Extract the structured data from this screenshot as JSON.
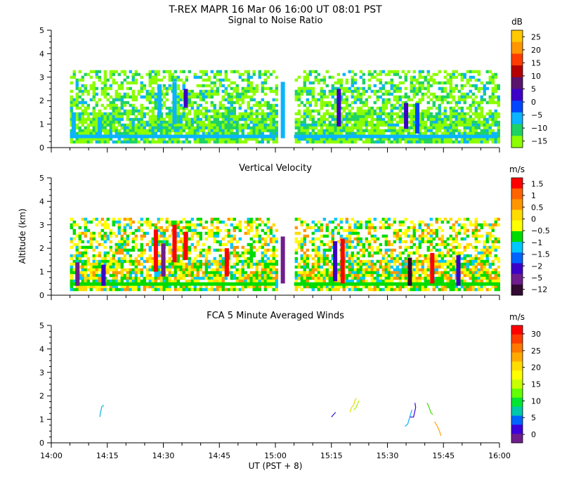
{
  "figure": {
    "title": "T-REX   MAPR 16 Mar 06   16:00 UT   08:01   PST",
    "xlabel": "UT  (PST + 8)",
    "ylabel": "Altitude (km)",
    "x_ticks": [
      "14:00",
      "14:15",
      "14:30",
      "14:45",
      "15:00",
      "15:15",
      "15:30",
      "15:45",
      "16:00"
    ]
  },
  "chart_data": [
    {
      "type": "heatmap",
      "title": "Signal to Noise Ratio",
      "colorbar_unit": "dB",
      "colorbar_ticks": [
        "25",
        "20",
        "15",
        "10",
        "5",
        "0",
        "−5",
        "−10",
        "−15"
      ],
      "colorbar_colors": [
        "#ffc800",
        "#ff9600",
        "#ff3c00",
        "#b40000",
        "#5a146e",
        "#3c00c8",
        "#0046ff",
        "#0ab4ff",
        "#1ed264",
        "#8cff00"
      ],
      "xlim": [
        "14:00",
        "16:00"
      ],
      "ylim": [
        0,
        5
      ],
      "y_ticks": [
        "0",
        "1",
        "2",
        "3",
        "4",
        "5"
      ],
      "data_gap": [
        "15:00",
        "15:05"
      ],
      "coverage_alt_km": [
        0.3,
        3.3
      ],
      "dominant_color_values_dB": [
        -15,
        -10
      ],
      "vertical_streaks": [
        {
          "time": "14:06",
          "alt_km": [
            0.4,
            1.5
          ],
          "color_dB": -5
        },
        {
          "time": "14:13",
          "alt_km": [
            0.4,
            1.3
          ],
          "color_dB": -5
        },
        {
          "time": "14:29",
          "alt_km": [
            1.4,
            2.7
          ],
          "color_dB": -5
        },
        {
          "time": "14:33",
          "alt_km": [
            1.0,
            2.8
          ],
          "color_dB": -5
        },
        {
          "time": "14:36",
          "alt_km": [
            1.7,
            2.5
          ],
          "color_dB": 5
        },
        {
          "time": "15:02",
          "alt_km": [
            0.4,
            2.8
          ],
          "color_dB": -5
        },
        {
          "time": "15:17",
          "alt_km": [
            0.9,
            2.5
          ],
          "color_dB": 5
        },
        {
          "time": "15:35",
          "alt_km": [
            0.8,
            1.9
          ],
          "color_dB": 5
        },
        {
          "time": "15:38",
          "alt_km": [
            0.6,
            1.9
          ],
          "color_dB": 0
        }
      ]
    },
    {
      "type": "heatmap",
      "title": "Vertical Velocity",
      "colorbar_unit": "m/s",
      "colorbar_ticks": [
        "1.5",
        "1",
        "0.5",
        "0",
        "−0.5",
        "−1",
        "−1.5",
        "−2",
        "−5",
        "−12"
      ],
      "colorbar_colors": [
        "#ff0000",
        "#ff6400",
        "#ff9600",
        "#ffdc00",
        "#ffff00",
        "#00dc00",
        "#00c8ff",
        "#0064ff",
        "#3c00c8",
        "#6e1e8c",
        "#320a32"
      ],
      "xlim": [
        "14:00",
        "16:00"
      ],
      "ylim": [
        0,
        5
      ],
      "y_ticks": [
        "0",
        "1",
        "2",
        "3",
        "4",
        "5"
      ],
      "data_gap": [
        "15:00",
        "15:05"
      ],
      "coverage_alt_km": [
        0.3,
        3.3
      ],
      "vertical_streaks": [
        {
          "time": "14:07",
          "alt_km": [
            0.4,
            1.4
          ],
          "color_ms": -5
        },
        {
          "time": "14:14",
          "alt_km": [
            0.4,
            1.3
          ],
          "color_ms": -2
        },
        {
          "time": "14:28",
          "alt_km": [
            1.0,
            2.8
          ],
          "color_ms": 1.5
        },
        {
          "time": "14:30",
          "alt_km": [
            0.8,
            2.2
          ],
          "color_ms": -5
        },
        {
          "time": "14:33",
          "alt_km": [
            1.4,
            3.0
          ],
          "color_ms": 1.5
        },
        {
          "time": "14:36",
          "alt_km": [
            1.5,
            2.7
          ],
          "color_ms": 1.5
        },
        {
          "time": "14:47",
          "alt_km": [
            0.8,
            2.0
          ],
          "color_ms": 1.5
        },
        {
          "time": "15:02",
          "alt_km": [
            0.5,
            2.5
          ],
          "color_ms": -5
        },
        {
          "time": "15:16",
          "alt_km": [
            0.6,
            2.3
          ],
          "color_ms": -2
        },
        {
          "time": "15:18",
          "alt_km": [
            0.5,
            2.4
          ],
          "color_ms": 1.5
        },
        {
          "time": "15:36",
          "alt_km": [
            0.4,
            1.6
          ],
          "color_ms": -12
        },
        {
          "time": "15:42",
          "alt_km": [
            0.5,
            1.8
          ],
          "color_ms": 1.5
        },
        {
          "time": "15:49",
          "alt_km": [
            0.4,
            1.7
          ],
          "color_ms": -2
        }
      ]
    },
    {
      "type": "line",
      "title": "FCA 5 Minute Averaged Winds",
      "colorbar_unit": "m/s",
      "colorbar_ticks": [
        "30",
        "25",
        "20",
        "15",
        "10",
        "5",
        "0"
      ],
      "colorbar_colors": [
        "#ff0000",
        "#ff3c00",
        "#ff7800",
        "#ffaa00",
        "#ffdc00",
        "#ffff00",
        "#c8ff00",
        "#64ff00",
        "#00e632",
        "#00c8aa",
        "#0064ff",
        "#3c00dc",
        "#6e1e8c"
      ],
      "xlim": [
        "14:00",
        "16:00"
      ],
      "ylim": [
        0,
        5
      ],
      "y_ticks": [
        "0",
        "1",
        "2",
        "3",
        "4",
        "5"
      ],
      "series": [
        {
          "time": "14:13",
          "x": [
            0,
            0.1,
            0.3,
            0.6
          ],
          "alt_km": [
            1.1,
            1.3,
            1.55,
            1.6
          ],
          "color": "#0ab4dc"
        },
        {
          "time": "15:15",
          "x": [
            0,
            0.3,
            0.6
          ],
          "alt_km": [
            1.1,
            1.2,
            1.3
          ],
          "color": "#2814c8"
        },
        {
          "time": "15:20",
          "x": [
            0,
            0.2,
            0.5,
            0.7,
            0.9
          ],
          "alt_km": [
            1.3,
            1.5,
            1.6,
            1.8,
            1.9
          ],
          "color": "#e6dc00"
        },
        {
          "time": "15:21",
          "x": [
            0,
            0.3,
            0.6,
            0.7
          ],
          "alt_km": [
            1.4,
            1.5,
            1.7,
            1.8
          ],
          "color": "#aaf000"
        },
        {
          "time": "15:36",
          "x": [
            -0.7,
            -0.3,
            0.1,
            0.3
          ],
          "alt_km": [
            0.7,
            0.8,
            1.2,
            1.4
          ],
          "color": "#0ab4ff"
        },
        {
          "time": "15:37",
          "x": [
            -0.5,
            0,
            0.3,
            0.2
          ],
          "alt_km": [
            1.1,
            1.1,
            1.5,
            1.7
          ],
          "color": "#3c00dc"
        },
        {
          "time": "15:41",
          "x": [
            -0.2,
            0.1,
            0.3,
            0.6
          ],
          "alt_km": [
            1.7,
            1.5,
            1.3,
            1.2
          ],
          "color": "#3cdc00"
        },
        {
          "time": "15:43",
          "x": [
            -0.2,
            0.2,
            0.5,
            0.7
          ],
          "alt_km": [
            0.9,
            0.7,
            0.5,
            0.3
          ],
          "color": "#ffa000"
        }
      ]
    }
  ]
}
